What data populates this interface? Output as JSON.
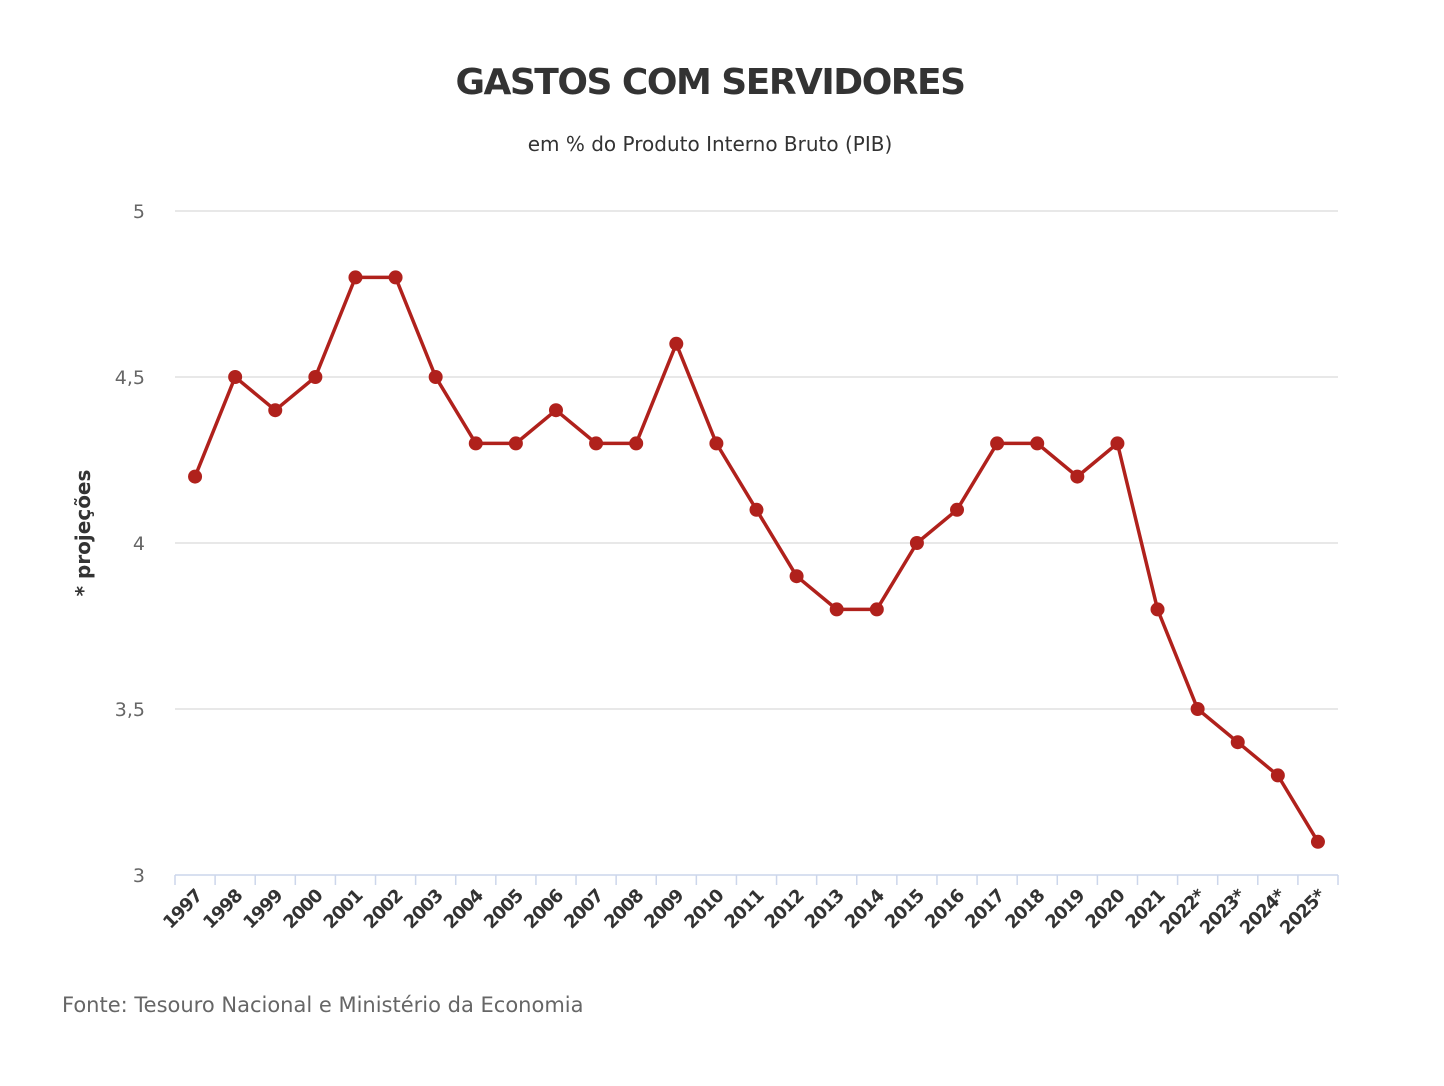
{
  "chart_data": {
    "type": "line",
    "title": "GASTOS COM SERVIDORES",
    "subtitle": "em % do Produto Interno Bruto (PIB)",
    "ylabel": "* projeções",
    "xlabel": "",
    "source": "Fonte: Tesouro Nacional e Ministério da Economia",
    "ylim": [
      3,
      5
    ],
    "yticks": [
      "3",
      "3,5",
      "4",
      "4,5",
      "5"
    ],
    "ytick_values": [
      3,
      3.5,
      4,
      4.5,
      5
    ],
    "grid": true,
    "categories": [
      "1997",
      "1998",
      "1999",
      "2000",
      "2001",
      "2002",
      "2003",
      "2004",
      "2005",
      "2006",
      "2007",
      "2008",
      "2009",
      "2010",
      "2011",
      "2012",
      "2013",
      "2014",
      "2015",
      "2016",
      "2017",
      "2018",
      "2019",
      "2020",
      "2021",
      "2022*",
      "2023*",
      "2024*",
      "2025*"
    ],
    "series": [
      {
        "name": "Gastos com servidores",
        "color": "#b0211c",
        "values": [
          4.2,
          4.5,
          4.4,
          4.5,
          4.8,
          4.8,
          4.5,
          4.3,
          4.3,
          4.4,
          4.3,
          4.3,
          4.6,
          4.3,
          4.1,
          3.9,
          3.8,
          3.8,
          4.0,
          4.1,
          4.3,
          4.3,
          4.2,
          4.3,
          3.8,
          3.5,
          3.4,
          3.3,
          3.1
        ]
      }
    ]
  }
}
